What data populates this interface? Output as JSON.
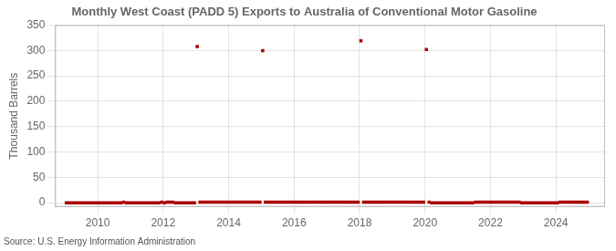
{
  "chart_data": {
    "type": "scatter",
    "title": "Monthly West Coast (PADD 5) Exports to Australia of Conventional Motor Gasoline",
    "ylabel": "Thousand Barrels",
    "source": "Source: U.S. Energy Information Administration",
    "xlim": [
      2008.7,
      2025.5
    ],
    "ylim": [
      -8,
      350
    ],
    "xticks": [
      2010,
      2012,
      2014,
      2016,
      2018,
      2020,
      2022,
      2024
    ],
    "yticks": [
      0,
      50,
      100,
      150,
      200,
      250,
      300,
      350
    ],
    "grid": true,
    "series": [
      {
        "color": "#aa0000",
        "marker": "square",
        "x": [
          2009.041666666667,
          2009.125,
          2009.208333333333,
          2009.291666666667,
          2009.375,
          2009.458333333333,
          2009.541666666667,
          2009.625,
          2009.708333333333,
          2009.791666666667,
          2009.875,
          2009.958333333333,
          2010.041666666667,
          2010.125,
          2010.208333333333,
          2010.291666666667,
          2010.375,
          2010.458333333333,
          2010.541666666667,
          2010.625,
          2010.708333333333,
          2010.791666666667,
          2010.875,
          2010.958333333333,
          2011.041666666667,
          2011.125,
          2011.208333333333,
          2011.291666666667,
          2011.375,
          2011.458333333333,
          2011.541666666667,
          2011.625,
          2011.708333333333,
          2011.791666666667,
          2011.875,
          2011.958333333333,
          2012.041666666667,
          2012.125,
          2012.208333333333,
          2012.291666666667,
          2012.375,
          2012.458333333333,
          2012.541666666667,
          2012.625,
          2012.708333333333,
          2012.791666666667,
          2012.875,
          2012.958333333333,
          2013.041666666667,
          2013.125,
          2013.208333333333,
          2013.291666666667,
          2013.375,
          2013.458333333333,
          2013.541666666667,
          2013.625,
          2013.708333333333,
          2013.791666666667,
          2013.875,
          2013.958333333333,
          2014.041666666667,
          2014.125,
          2014.208333333333,
          2014.291666666667,
          2014.375,
          2014.458333333333,
          2014.541666666667,
          2014.625,
          2014.708333333333,
          2014.791666666667,
          2014.875,
          2014.958333333333,
          2015.041666666667,
          2015.125,
          2015.208333333333,
          2015.291666666667,
          2015.375,
          2015.458333333333,
          2015.541666666667,
          2015.625,
          2015.708333333333,
          2015.791666666667,
          2015.875,
          2015.958333333333,
          2016.041666666667,
          2016.125,
          2016.208333333333,
          2016.291666666667,
          2016.375,
          2016.458333333333,
          2016.541666666667,
          2016.625,
          2016.708333333333,
          2016.791666666667,
          2016.875,
          2016.958333333333,
          2017.041666666667,
          2017.125,
          2017.208333333333,
          2017.291666666667,
          2017.375,
          2017.458333333333,
          2017.541666666667,
          2017.625,
          2017.708333333333,
          2017.791666666667,
          2017.875,
          2017.958333333333,
          2018.041666666667,
          2018.125,
          2018.208333333333,
          2018.291666666667,
          2018.375,
          2018.458333333333,
          2018.541666666667,
          2018.625,
          2018.708333333333,
          2018.791666666667,
          2018.875,
          2018.958333333333,
          2019.041666666667,
          2019.125,
          2019.208333333333,
          2019.291666666667,
          2019.375,
          2019.458333333333,
          2019.541666666667,
          2019.625,
          2019.708333333333,
          2019.791666666667,
          2019.875,
          2019.958333333333,
          2020.041666666667,
          2020.125,
          2020.208333333333,
          2020.291666666667,
          2020.375,
          2020.458333333333,
          2020.541666666667,
          2020.625,
          2020.708333333333,
          2020.791666666667,
          2020.875,
          2020.958333333333,
          2021.041666666667,
          2021.125,
          2021.208333333333,
          2021.291666666667,
          2021.375,
          2021.458333333333,
          2021.541666666667,
          2021.625,
          2021.708333333333,
          2021.791666666667,
          2021.875,
          2021.958333333333,
          2022.041666666667,
          2022.125,
          2022.208333333333,
          2022.291666666667,
          2022.375,
          2022.458333333333,
          2022.541666666667,
          2022.625,
          2022.708333333333,
          2022.791666666667,
          2022.875,
          2022.958333333333,
          2023.041666666667,
          2023.125,
          2023.208333333333,
          2023.291666666667,
          2023.375,
          2023.458333333333,
          2023.541666666667,
          2023.625,
          2023.708333333333,
          2023.791666666667,
          2023.875,
          2023.958333333333,
          2024.041666666667,
          2024.125,
          2024.208333333333,
          2024.291666666667,
          2024.375,
          2024.458333333333,
          2024.541666666667,
          2024.625,
          2024.708333333333,
          2024.791666666667,
          2024.875,
          2024.958333333333
        ],
        "values": [
          0,
          0,
          0,
          0,
          0,
          0,
          0,
          0,
          0,
          0,
          0,
          0,
          0,
          0,
          0,
          0,
          0,
          0,
          0,
          0,
          0,
          1,
          0,
          0,
          0,
          0,
          0,
          0,
          0,
          0,
          0,
          0,
          0,
          0,
          0,
          1,
          0,
          1,
          1,
          1,
          0,
          0,
          0,
          0,
          0,
          0,
          0,
          0,
          308,
          1,
          1,
          1,
          1,
          1,
          1,
          1,
          1,
          1,
          1,
          1,
          1,
          1,
          1,
          1,
          1,
          1,
          1,
          1,
          1,
          1,
          1,
          1,
          300,
          1,
          1,
          1,
          1,
          1,
          1,
          1,
          1,
          1,
          1,
          1,
          1,
          1,
          1,
          1,
          1,
          1,
          1,
          1,
          1,
          1,
          1,
          1,
          1,
          1,
          1,
          1,
          1,
          1,
          1,
          1,
          1,
          1,
          1,
          1,
          319,
          1,
          1,
          1,
          1,
          1,
          1,
          1,
          1,
          1,
          1,
          1,
          1,
          1,
          1,
          1,
          1,
          1,
          1,
          1,
          1,
          1,
          1,
          1,
          302,
          1,
          0,
          0,
          0,
          0,
          0,
          0,
          0,
          0,
          0,
          0,
          0,
          0,
          0,
          0,
          0,
          0,
          1,
          1,
          1,
          1,
          1,
          1,
          1,
          1,
          1,
          1,
          1,
          1,
          1,
          1,
          1,
          1,
          1,
          0,
          0,
          0,
          0,
          0,
          0,
          0,
          0,
          0,
          0,
          0,
          0,
          0,
          0,
          1,
          1,
          1,
          1,
          1,
          1,
          1,
          1,
          1,
          1,
          1
        ]
      }
    ]
  }
}
